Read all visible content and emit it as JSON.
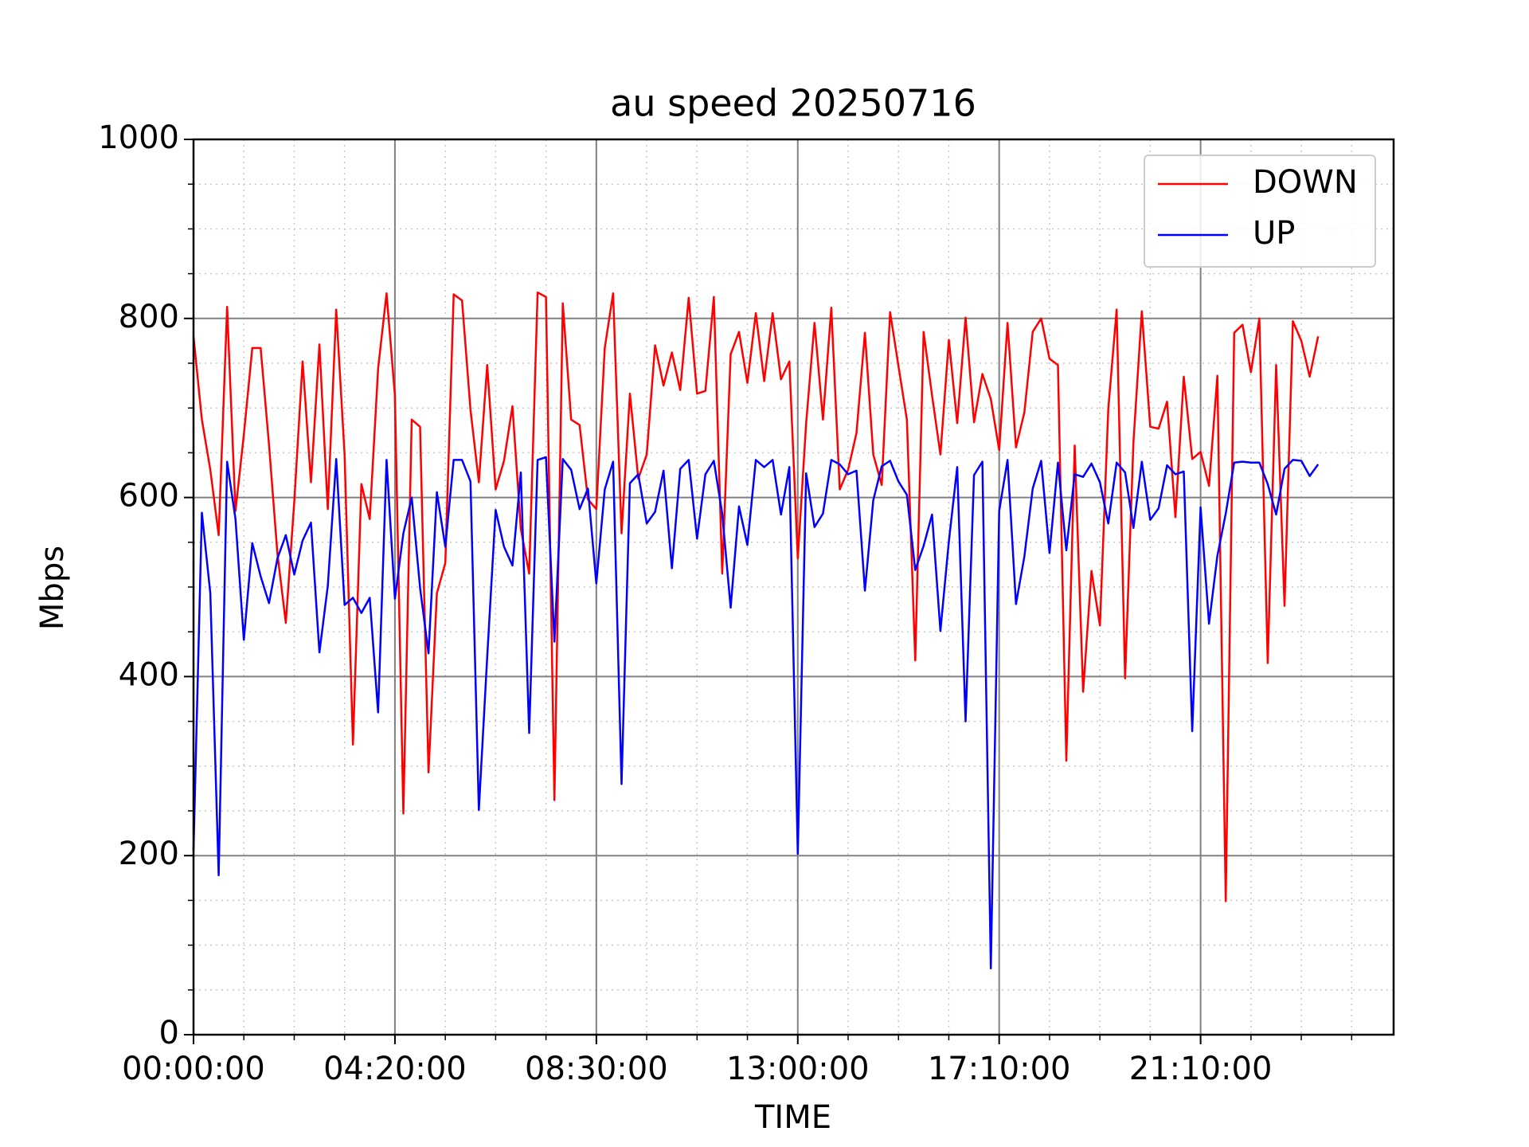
{
  "chart_data": {
    "type": "line",
    "title": "au speed 20250716",
    "xlabel": "TIME",
    "ylabel": "Mbps",
    "categories": [
      "00:00:00",
      null,
      null,
      null,
      null,
      null,
      null,
      null,
      null,
      null,
      null,
      null,
      null,
      null,
      null,
      null,
      null,
      null,
      null,
      null,
      null,
      null,
      null,
      null,
      "04:20:00",
      null,
      null,
      null,
      null,
      null,
      null,
      null,
      null,
      null,
      null,
      null,
      null,
      null,
      null,
      null,
      null,
      null,
      null,
      null,
      null,
      null,
      null,
      null,
      "08:30:00",
      null,
      null,
      null,
      null,
      null,
      null,
      null,
      null,
      null,
      null,
      null,
      null,
      null,
      null,
      null,
      null,
      null,
      null,
      null,
      null,
      null,
      null,
      null,
      "13:00:00",
      null,
      null,
      null,
      null,
      null,
      null,
      null,
      null,
      null,
      null,
      null,
      null,
      null,
      null,
      null,
      null,
      null,
      null,
      null,
      null,
      null,
      null,
      null,
      "17:10:00",
      null,
      null,
      null,
      null,
      null,
      null,
      null,
      null,
      null,
      null,
      null,
      null,
      null,
      null,
      null,
      null,
      null,
      null,
      null,
      null,
      null,
      null,
      null,
      "21:10:00",
      null,
      null,
      null,
      null,
      null,
      null,
      null,
      null,
      null,
      null,
      null,
      null,
      null,
      null
    ],
    "series": [
      {
        "name": "DOWN",
        "color": "#ff0000",
        "values": [
          780,
          687,
          631,
          558,
          813,
          585,
          670,
          767,
          767,
          659,
          537,
          460,
          595,
          752,
          617,
          771,
          587,
          810,
          648,
          324,
          615,
          576,
          744,
          828,
          714,
          247,
          687,
          679,
          293,
          493,
          527,
          827,
          820,
          698,
          617,
          748,
          609,
          641,
          702,
          565,
          515,
          829,
          824,
          262,
          817,
          687,
          681,
          598,
          587,
          767,
          828,
          560,
          716,
          621,
          648,
          770,
          725,
          762,
          720,
          823,
          716,
          719,
          824,
          515,
          760,
          785,
          728,
          806,
          730,
          806,
          732,
          752,
          532,
          683,
          795,
          687,
          812,
          609,
          631,
          672,
          784,
          648,
          614,
          807,
          747,
          687,
          418,
          785,
          714,
          648,
          776,
          683,
          801,
          684,
          738,
          710,
          653,
          795,
          656,
          695,
          785,
          800,
          755,
          748,
          306,
          658,
          383,
          518,
          457,
          699,
          810,
          398,
          662,
          808,
          679,
          677,
          707,
          578,
          735,
          643,
          651,
          613,
          736,
          149,
          784,
          793,
          740,
          800,
          415,
          748,
          479,
          797,
          775,
          735,
          780
        ]
      },
      {
        "name": "UP",
        "color": "#0000ff",
        "values": [
          206,
          583,
          493,
          178,
          640,
          576,
          441,
          549,
          512,
          482,
          532,
          558,
          514,
          552,
          572,
          427,
          501,
          643,
          480,
          488,
          471,
          488,
          360,
          642,
          487,
          560,
          600,
          499,
          426,
          606,
          545,
          642,
          642,
          618,
          251,
          422,
          586,
          545,
          524,
          628,
          337,
          642,
          645,
          439,
          643,
          631,
          587,
          610,
          504,
          609,
          640,
          280,
          616,
          626,
          571,
          584,
          630,
          521,
          632,
          642,
          554,
          626,
          641,
          582,
          477,
          590,
          547,
          642,
          634,
          642,
          581,
          634,
          202,
          627,
          567,
          582,
          642,
          637,
          626,
          630,
          496,
          597,
          635,
          641,
          618,
          603,
          519,
          546,
          581,
          451,
          551,
          634,
          350,
          625,
          640,
          74,
          585,
          642,
          481,
          534,
          610,
          641,
          538,
          639,
          541,
          626,
          623,
          638,
          617,
          571,
          639,
          628,
          566,
          640,
          575,
          588,
          636,
          626,
          629,
          339,
          589,
          459,
          535,
          582,
          639,
          640,
          639,
          639,
          615,
          581,
          632,
          642,
          641,
          624,
          637
        ]
      }
    ],
    "xlim": [
      0,
      143
    ],
    "ylim": [
      0,
      1000
    ],
    "yticks": [
      0,
      200,
      400,
      600,
      800,
      1000
    ],
    "grid": true,
    "minor_grid": true,
    "legend": "upper right"
  }
}
